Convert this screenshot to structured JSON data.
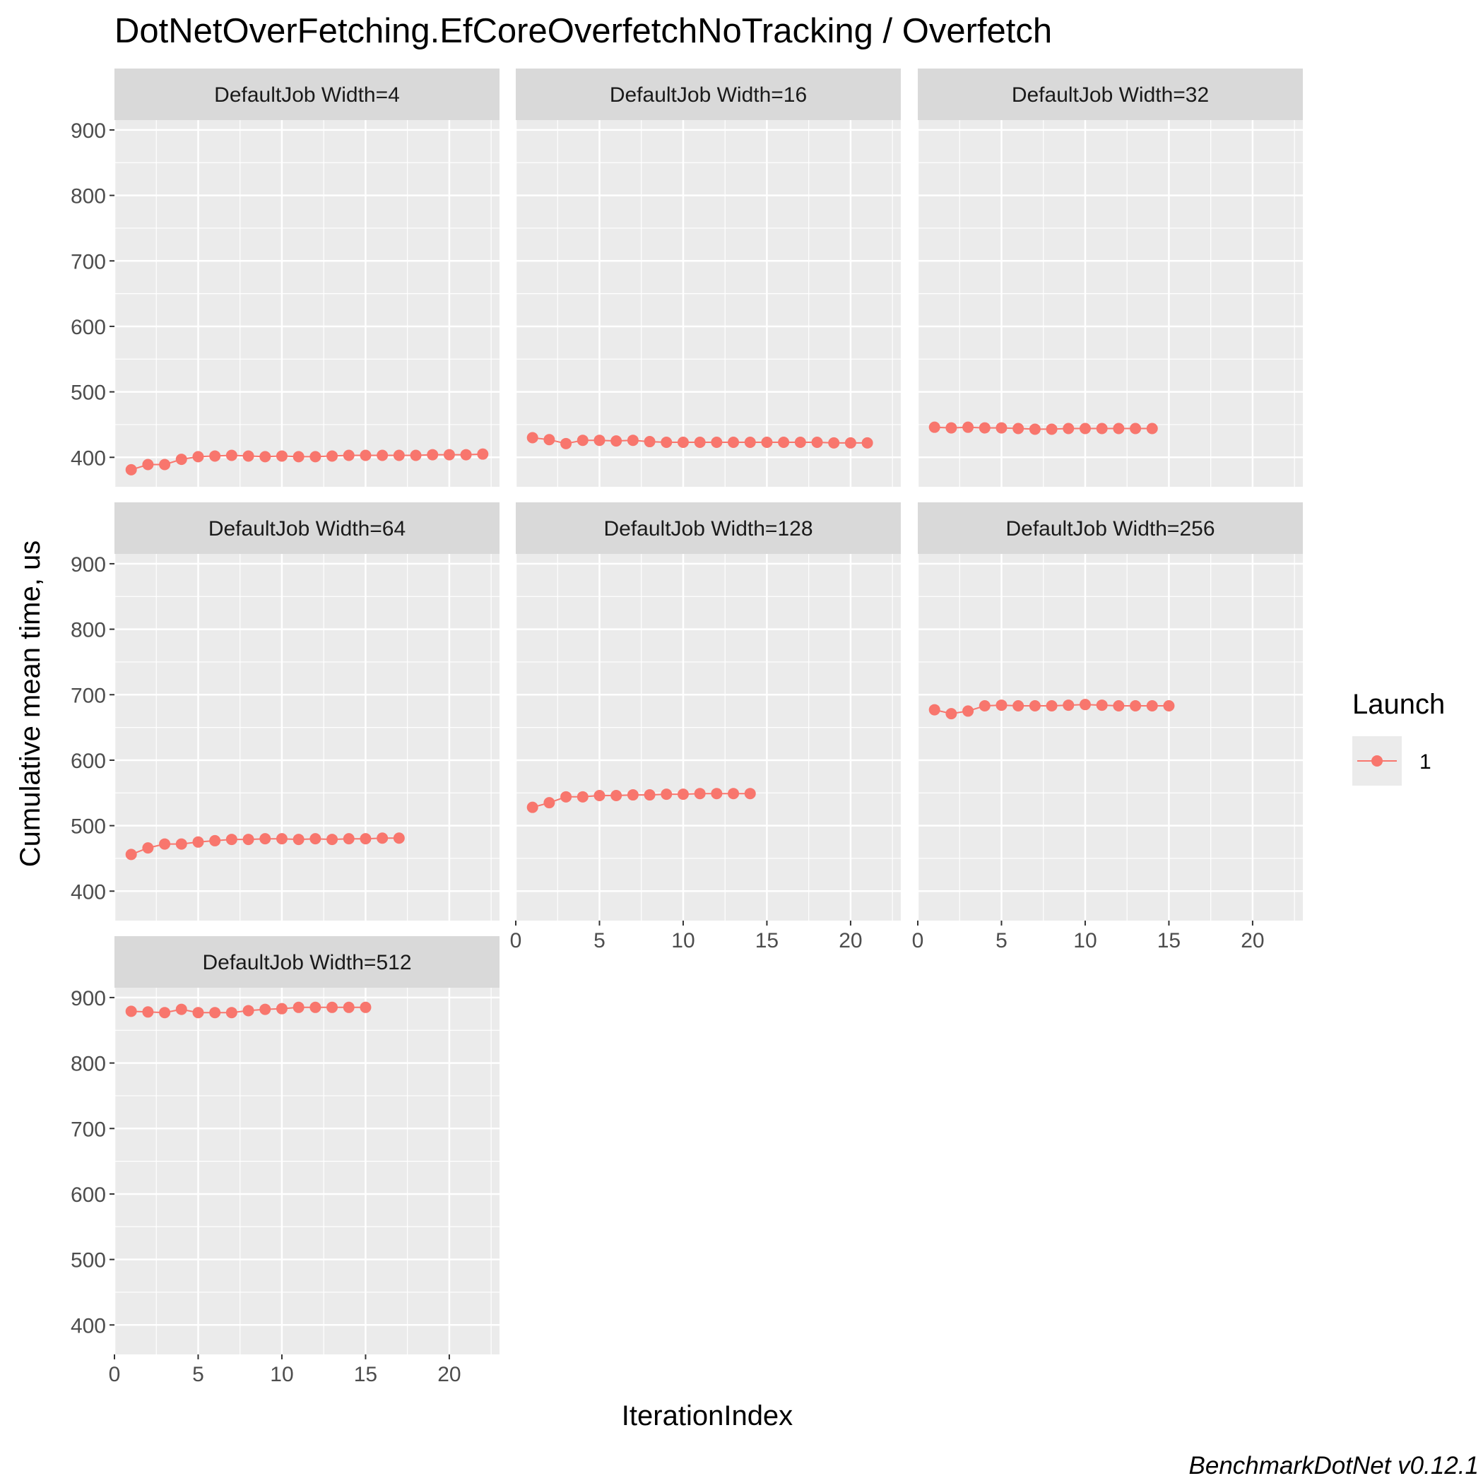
{
  "chart_data": {
    "type": "line",
    "title": "DotNetOverFetching.EfCoreOverfetchNoTracking / Overfetch",
    "xlabel": "IterationIndex",
    "ylabel": "Cumulative mean time, us",
    "caption": "BenchmarkDotNet v0.12.1",
    "xlim": [
      0,
      23
    ],
    "ylim": [
      355,
      915
    ],
    "x_ticks": [
      0,
      5,
      10,
      15,
      20
    ],
    "y_ticks": [
      400,
      500,
      600,
      700,
      800,
      900
    ],
    "grid": true,
    "legend": {
      "title": "Launch",
      "position": "right",
      "entries": [
        {
          "label": "1",
          "color": "#F8766D"
        }
      ]
    },
    "series_color": "#F8766D",
    "panels": [
      {
        "label": "DefaultJob Width=4",
        "series": [
          {
            "name": "1",
            "x": [
              1,
              2,
              3,
              4,
              5,
              6,
              7,
              8,
              9,
              10,
              11,
              12,
              13,
              14,
              15,
              16,
              17,
              18,
              19,
              20,
              21,
              22
            ],
            "values": [
              381,
              389,
              389,
              397,
              401,
              402,
              403,
              402,
              401,
              402,
              401,
              401,
              402,
              403,
              403,
              403,
              403,
              403,
              404,
              404,
              404,
              405
            ]
          }
        ]
      },
      {
        "label": "DefaultJob Width=16",
        "series": [
          {
            "name": "1",
            "x": [
              1,
              2,
              3,
              4,
              5,
              6,
              7,
              8,
              9,
              10,
              11,
              12,
              13,
              14,
              15,
              16,
              17,
              18,
              19,
              20,
              21
            ],
            "values": [
              430,
              427,
              421,
              426,
              426,
              425,
              426,
              424,
              423,
              423,
              423,
              423,
              423,
              423,
              423,
              423,
              423,
              423,
              422,
              422,
              422
            ]
          }
        ]
      },
      {
        "label": "DefaultJob Width=32",
        "series": [
          {
            "name": "1",
            "x": [
              1,
              2,
              3,
              4,
              5,
              6,
              7,
              8,
              9,
              10,
              11,
              12,
              13,
              14
            ],
            "values": [
              446,
              445,
              446,
              445,
              445,
              444,
              443,
              443,
              444,
              444,
              444,
              444,
              444,
              444
            ]
          }
        ]
      },
      {
        "label": "DefaultJob Width=64",
        "series": [
          {
            "name": "1",
            "x": [
              1,
              2,
              3,
              4,
              5,
              6,
              7,
              8,
              9,
              10,
              11,
              12,
              13,
              14,
              15,
              16,
              17
            ],
            "values": [
              456,
              466,
              472,
              472,
              475,
              477,
              479,
              479,
              480,
              480,
              479,
              480,
              479,
              480,
              480,
              481,
              481
            ]
          }
        ]
      },
      {
        "label": "DefaultJob Width=128",
        "series": [
          {
            "name": "1",
            "x": [
              1,
              2,
              3,
              4,
              5,
              6,
              7,
              8,
              9,
              10,
              11,
              12,
              13,
              14
            ],
            "values": [
              528,
              535,
              544,
              544,
              546,
              546,
              547,
              547,
              548,
              548,
              549,
              549,
              549,
              549
            ]
          }
        ]
      },
      {
        "label": "DefaultJob Width=256",
        "series": [
          {
            "name": "1",
            "x": [
              1,
              2,
              3,
              4,
              5,
              6,
              7,
              8,
              9,
              10,
              11,
              12,
              13,
              14,
              15
            ],
            "values": [
              677,
              671,
              675,
              683,
              684,
              683,
              683,
              683,
              684,
              685,
              684,
              683,
              683,
              683,
              683
            ]
          }
        ]
      },
      {
        "label": "DefaultJob Width=512",
        "series": [
          {
            "name": "1",
            "x": [
              1,
              2,
              3,
              4,
              5,
              6,
              7,
              8,
              9,
              10,
              11,
              12,
              13,
              14,
              15
            ],
            "values": [
              879,
              878,
              877,
              882,
              877,
              877,
              877,
              880,
              882,
              883,
              885,
              885,
              885,
              885,
              885
            ]
          }
        ]
      }
    ]
  }
}
